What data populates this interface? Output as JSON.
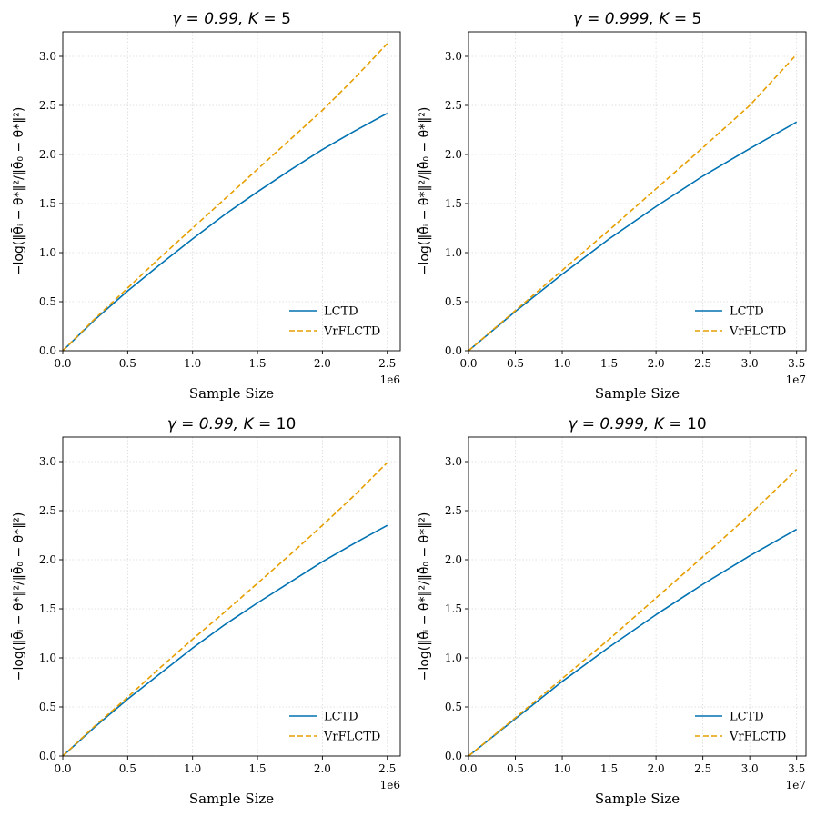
{
  "chart_data": [
    {
      "type": "line",
      "title": "γ = 0.99, K = 5",
      "title_text": {
        "base": "γ = 0.99, ",
        "k_var": "K",
        "k_rest": " = 5"
      },
      "xlabel": "Sample Size",
      "ylabel": "−log(‖θ̄ᵢ − θ*‖²/‖θ̄₀ − θ*‖²)",
      "offset_label": "1e6",
      "x_scale": 1000000,
      "xlim": [
        0,
        2.6
      ],
      "ylim": [
        0,
        3.25
      ],
      "x_ticks": [
        0,
        0.5,
        1,
        1.5,
        2,
        2.5
      ],
      "x_tick_labels": [
        "0.0",
        "0.5",
        "1.0",
        "1.5",
        "2.0",
        "2.5"
      ],
      "y_ticks": [
        0,
        0.5,
        1,
        1.5,
        2,
        2.5,
        3
      ],
      "y_tick_labels": [
        "0.0",
        "0.5",
        "1.0",
        "1.5",
        "2.0",
        "2.5",
        "3.0"
      ],
      "grid": true,
      "legend_position": "lower-right",
      "series": [
        {
          "name": "LCTD",
          "color": "#0072B2",
          "dash": "solid",
          "x": [
            0,
            0.25,
            0.5,
            0.75,
            1.0,
            1.25,
            1.5,
            1.75,
            2.0,
            2.25,
            2.5
          ],
          "y": [
            0,
            0.32,
            0.61,
            0.88,
            1.14,
            1.39,
            1.62,
            1.84,
            2.05,
            2.24,
            2.42
          ]
        },
        {
          "name": "VrFLCTD",
          "color": "#E69F00",
          "dash": "dashed",
          "x": [
            0,
            0.25,
            0.5,
            0.75,
            1.0,
            1.25,
            1.5,
            1.75,
            2.0,
            2.25,
            2.5
          ],
          "y": [
            0,
            0.33,
            0.64,
            0.95,
            1.25,
            1.55,
            1.85,
            2.15,
            2.45,
            2.78,
            3.13
          ]
        }
      ]
    },
    {
      "type": "line",
      "title": "γ = 0.999, K = 5",
      "title_text": {
        "base": "γ = 0.999, ",
        "k_var": "K",
        "k_rest": " = 5"
      },
      "xlabel": "Sample Size",
      "ylabel": "−log(‖θ̄ᵢ − θ*‖²/‖θ̄₀ − θ*‖²)",
      "offset_label": "1e7",
      "x_scale": 10000000,
      "xlim": [
        0,
        3.6
      ],
      "ylim": [
        0,
        3.25
      ],
      "x_ticks": [
        0,
        0.5,
        1,
        1.5,
        2,
        2.5,
        3,
        3.5
      ],
      "x_tick_labels": [
        "0.0",
        "0.5",
        "1.0",
        "1.5",
        "2.0",
        "2.5",
        "3.0",
        "3.5"
      ],
      "y_ticks": [
        0,
        0.5,
        1,
        1.5,
        2,
        2.5,
        3
      ],
      "y_tick_labels": [
        "0.0",
        "0.5",
        "1.0",
        "1.5",
        "2.0",
        "2.5",
        "3.0"
      ],
      "grid": true,
      "legend_position": "lower-right",
      "series": [
        {
          "name": "LCTD",
          "color": "#0072B2",
          "dash": "solid",
          "x": [
            0,
            0.5,
            1.0,
            1.5,
            2.0,
            2.5,
            3.0,
            3.5
          ],
          "y": [
            0,
            0.4,
            0.78,
            1.14,
            1.47,
            1.78,
            2.06,
            2.33
          ]
        },
        {
          "name": "VrFLCTD",
          "color": "#E69F00",
          "dash": "dashed",
          "x": [
            0,
            0.5,
            1.0,
            1.5,
            2.0,
            2.5,
            3.0,
            3.5
          ],
          "y": [
            0,
            0.41,
            0.82,
            1.23,
            1.65,
            2.07,
            2.5,
            3.02
          ]
        }
      ]
    },
    {
      "type": "line",
      "title": "γ = 0.99, K = 10",
      "title_text": {
        "base": "γ = 0.99, ",
        "k_var": "K",
        "k_rest": " = 10"
      },
      "xlabel": "Sample Size",
      "ylabel": "−log(‖θ̄ᵢ − θ*‖²/‖θ̄₀ − θ*‖²)",
      "offset_label": "1e6",
      "x_scale": 1000000,
      "xlim": [
        0,
        2.6
      ],
      "ylim": [
        0,
        3.25
      ],
      "x_ticks": [
        0,
        0.5,
        1,
        1.5,
        2,
        2.5
      ],
      "x_tick_labels": [
        "0.0",
        "0.5",
        "1.0",
        "1.5",
        "2.0",
        "2.5"
      ],
      "y_ticks": [
        0,
        0.5,
        1,
        1.5,
        2,
        2.5,
        3
      ],
      "y_tick_labels": [
        "0.0",
        "0.5",
        "1.0",
        "1.5",
        "2.0",
        "2.5",
        "3.0"
      ],
      "grid": true,
      "legend_position": "lower-right",
      "series": [
        {
          "name": "LCTD",
          "color": "#0072B2",
          "dash": "solid",
          "x": [
            0,
            0.25,
            0.5,
            0.75,
            1.0,
            1.25,
            1.5,
            1.75,
            2.0,
            2.25,
            2.5
          ],
          "y": [
            0,
            0.3,
            0.58,
            0.84,
            1.1,
            1.34,
            1.56,
            1.77,
            1.98,
            2.17,
            2.35
          ]
        },
        {
          "name": "VrFLCTD",
          "color": "#E69F00",
          "dash": "dashed",
          "x": [
            0,
            0.25,
            0.5,
            0.75,
            1.0,
            1.25,
            1.5,
            1.75,
            2.0,
            2.25,
            2.5
          ],
          "y": [
            0,
            0.31,
            0.6,
            0.9,
            1.19,
            1.47,
            1.76,
            2.05,
            2.35,
            2.66,
            2.99
          ]
        }
      ]
    },
    {
      "type": "line",
      "title": "γ = 0.999, K = 10",
      "title_text": {
        "base": "γ = 0.999, ",
        "k_var": "K",
        "k_rest": " = 10"
      },
      "xlabel": "Sample Size",
      "ylabel": "−log(‖θ̄ᵢ − θ*‖²/‖θ̄₀ − θ*‖²)",
      "offset_label": "1e7",
      "x_scale": 10000000,
      "xlim": [
        0,
        3.6
      ],
      "ylim": [
        0,
        3.25
      ],
      "x_ticks": [
        0,
        0.5,
        1,
        1.5,
        2,
        2.5,
        3,
        3.5
      ],
      "x_tick_labels": [
        "0.0",
        "0.5",
        "1.0",
        "1.5",
        "2.0",
        "2.5",
        "3.0",
        "3.5"
      ],
      "y_ticks": [
        0,
        0.5,
        1,
        1.5,
        2,
        2.5,
        3
      ],
      "y_tick_labels": [
        "0.0",
        "0.5",
        "1.0",
        "1.5",
        "2.0",
        "2.5",
        "3.0"
      ],
      "grid": true,
      "legend_position": "lower-right",
      "series": [
        {
          "name": "LCTD",
          "color": "#0072B2",
          "dash": "solid",
          "x": [
            0,
            0.5,
            1.0,
            1.5,
            2.0,
            2.5,
            3.0,
            3.5
          ],
          "y": [
            0,
            0.38,
            0.76,
            1.11,
            1.44,
            1.75,
            2.04,
            2.31
          ]
        },
        {
          "name": "VrFLCTD",
          "color": "#E69F00",
          "dash": "dashed",
          "x": [
            0,
            0.5,
            1.0,
            1.5,
            2.0,
            2.5,
            3.0,
            3.5
          ],
          "y": [
            0,
            0.39,
            0.79,
            1.19,
            1.61,
            2.03,
            2.46,
            2.92
          ]
        }
      ]
    }
  ]
}
